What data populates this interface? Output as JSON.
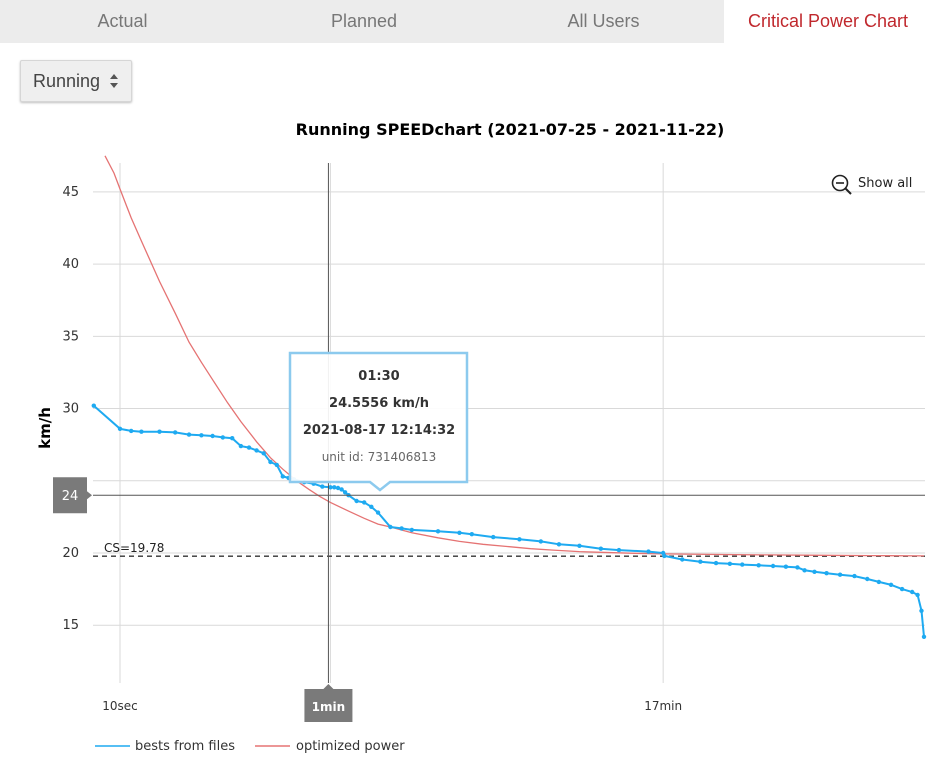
{
  "tabs": [
    {
      "label": "Actual",
      "active": false
    },
    {
      "label": "Planned",
      "active": false
    },
    {
      "label": "All Users",
      "active": false
    },
    {
      "label": "Critical Power Chart",
      "active": true
    }
  ],
  "sport_select": {
    "value": "Running"
  },
  "show_all_label": "Show all",
  "chart_data": {
    "type": "line",
    "title": "Running SPEEDchart (2021-07-25 - 2021-11-22)",
    "ylabel": "km/h",
    "xlabel": "",
    "x_scale": "log",
    "x_unit": "seconds",
    "ylim": [
      11,
      47
    ],
    "y_ticks": [
      15,
      20,
      25,
      30,
      35,
      40,
      45
    ],
    "y_tick_labels": [
      "15",
      "20",
      "",
      "30",
      "35",
      "40",
      "45"
    ],
    "x_ticks": [
      {
        "value": 10,
        "label": "10sec"
      },
      {
        "value": 60,
        "label": "1min"
      },
      {
        "value": 1020,
        "label": "17min"
      }
    ],
    "grid": true,
    "legend_position": "bottom-left",
    "critical_speed": {
      "value": 19.78,
      "label": "CS=19.78"
    },
    "series": [
      {
        "name": "bests from files",
        "color": "#1eaaf1",
        "points": [
          [
            8,
            30.2
          ],
          [
            10,
            28.6
          ],
          [
            11,
            28.45
          ],
          [
            12,
            28.4
          ],
          [
            14,
            28.4
          ],
          [
            16,
            28.35
          ],
          [
            18,
            28.2
          ],
          [
            20,
            28.15
          ],
          [
            22,
            28.1
          ],
          [
            24,
            28.0
          ],
          [
            26,
            27.95
          ],
          [
            28,
            27.4
          ],
          [
            30,
            27.3
          ],
          [
            32,
            27.1
          ],
          [
            34,
            26.9
          ],
          [
            36,
            26.3
          ],
          [
            38,
            26.1
          ],
          [
            40,
            25.3
          ],
          [
            42,
            25.2
          ],
          [
            44,
            25.1
          ],
          [
            48,
            24.9
          ],
          [
            52,
            24.8
          ],
          [
            56,
            24.6
          ],
          [
            60,
            24.55
          ],
          [
            62,
            24.55
          ],
          [
            64,
            24.5
          ],
          [
            66,
            24.4
          ],
          [
            68,
            24.2
          ],
          [
            70,
            24.0
          ],
          [
            75,
            23.6
          ],
          [
            80,
            23.5
          ],
          [
            85,
            23.2
          ],
          [
            90,
            22.8
          ],
          [
            100,
            21.8
          ],
          [
            110,
            21.7
          ],
          [
            120,
            21.6
          ],
          [
            150,
            21.5
          ],
          [
            180,
            21.4
          ],
          [
            200,
            21.3
          ],
          [
            240,
            21.1
          ],
          [
            300,
            20.95
          ],
          [
            360,
            20.8
          ],
          [
            420,
            20.6
          ],
          [
            500,
            20.5
          ],
          [
            600,
            20.3
          ],
          [
            700,
            20.2
          ],
          [
            900,
            20.1
          ],
          [
            1020,
            20.0
          ],
          [
            1030,
            19.8
          ],
          [
            1200,
            19.55
          ],
          [
            1400,
            19.4
          ],
          [
            1600,
            19.3
          ],
          [
            1800,
            19.25
          ],
          [
            2000,
            19.2
          ],
          [
            2300,
            19.15
          ],
          [
            2600,
            19.1
          ],
          [
            2900,
            19.05
          ],
          [
            3200,
            19.0
          ],
          [
            3400,
            18.8
          ],
          [
            3700,
            18.7
          ],
          [
            4100,
            18.6
          ],
          [
            4600,
            18.5
          ],
          [
            5200,
            18.4
          ],
          [
            5800,
            18.2
          ],
          [
            6400,
            18.0
          ],
          [
            7100,
            17.8
          ],
          [
            7800,
            17.5
          ],
          [
            8500,
            17.3
          ],
          [
            8900,
            17.1
          ],
          [
            9200,
            16.0
          ],
          [
            9400,
            14.2
          ]
        ]
      },
      {
        "name": "optimized power",
        "color": "#e57373",
        "points": [
          [
            8.8,
            47.5
          ],
          [
            9.5,
            46.3
          ],
          [
            10,
            45.2
          ],
          [
            11,
            43.2
          ],
          [
            12,
            41.6
          ],
          [
            14,
            38.8
          ],
          [
            16,
            36.6
          ],
          [
            18,
            34.6
          ],
          [
            20,
            33.2
          ],
          [
            22,
            32.0
          ],
          [
            25,
            30.4
          ],
          [
            28,
            29.1
          ],
          [
            32,
            27.7
          ],
          [
            36,
            26.6
          ],
          [
            40,
            25.8
          ],
          [
            45,
            25.0
          ],
          [
            50,
            24.4
          ],
          [
            55,
            23.9
          ],
          [
            60,
            23.5
          ],
          [
            70,
            22.9
          ],
          [
            80,
            22.4
          ],
          [
            90,
            22.0
          ],
          [
            100,
            21.8
          ],
          [
            120,
            21.4
          ],
          [
            150,
            21.05
          ],
          [
            180,
            20.8
          ],
          [
            220,
            20.6
          ],
          [
            270,
            20.45
          ],
          [
            330,
            20.3
          ],
          [
            400,
            20.2
          ],
          [
            500,
            20.1
          ],
          [
            600,
            20.05
          ],
          [
            800,
            19.98
          ],
          [
            1000,
            19.94
          ],
          [
            1500,
            19.9
          ],
          [
            2500,
            19.87
          ],
          [
            4000,
            19.84
          ],
          [
            6000,
            19.82
          ],
          [
            9400,
            19.8
          ]
        ]
      }
    ],
    "crosshair": {
      "x": 60,
      "y": 24,
      "x_label": "1min",
      "y_label": "24"
    },
    "tooltip": {
      "time": "01:30",
      "value": "24.5556 km/h",
      "date": "2021-08-17 12:14:32",
      "unit_id": "unit id: 731406813"
    }
  }
}
